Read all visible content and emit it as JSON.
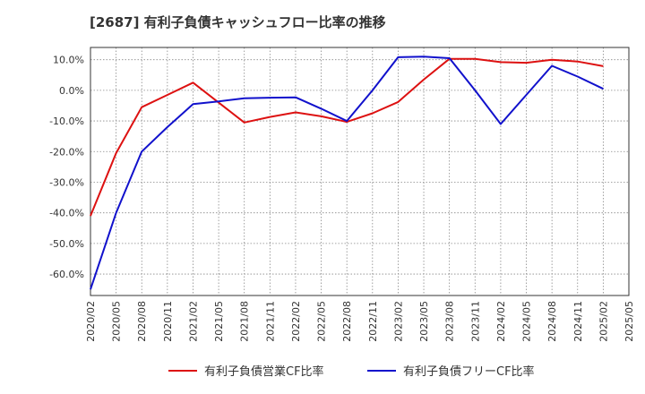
{
  "chart_data": {
    "type": "line",
    "title": "[2687]  有利子負債キャッシュフロー比率の推移",
    "x": [
      "2020/02",
      "2020/05",
      "2020/08",
      "2020/11",
      "2021/02",
      "2021/05",
      "2021/08",
      "2021/11",
      "2022/02",
      "2022/05",
      "2022/08",
      "2022/11",
      "2023/02",
      "2023/05",
      "2023/08",
      "2023/11",
      "2024/02",
      "2024/05",
      "2024/08",
      "2024/11",
      "2025/02",
      "2025/05"
    ],
    "yticks": [
      "10.0%",
      "0.0%",
      "-10.0%",
      "-20.0%",
      "-30.0%",
      "-40.0%",
      "-50.0%",
      "-60.0%"
    ],
    "ylim": [
      -67,
      14
    ],
    "series": [
      {
        "name": "有利子負債営業CF比率",
        "color": "#dd1111",
        "values": [
          -41.0,
          -20.5,
          -5.5,
          -1.5,
          2.5,
          -4.0,
          -10.5,
          -8.7,
          -7.2,
          -8.5,
          -10.3,
          -7.5,
          -3.8,
          3.5,
          10.3,
          10.3,
          9.2,
          9.0,
          10.0,
          9.4,
          7.9,
          null
        ]
      },
      {
        "name": "有利子負債フリーCF比率",
        "color": "#1111cc",
        "values": [
          -65.0,
          -40.0,
          -20.0,
          -12.0,
          -4.5,
          -3.6,
          -2.6,
          -2.4,
          -2.3,
          -6.0,
          -10.0,
          0.0,
          10.8,
          11.0,
          10.5,
          0.0,
          -11.0,
          -1.5,
          8.0,
          4.5,
          0.5,
          null
        ]
      }
    ]
  }
}
